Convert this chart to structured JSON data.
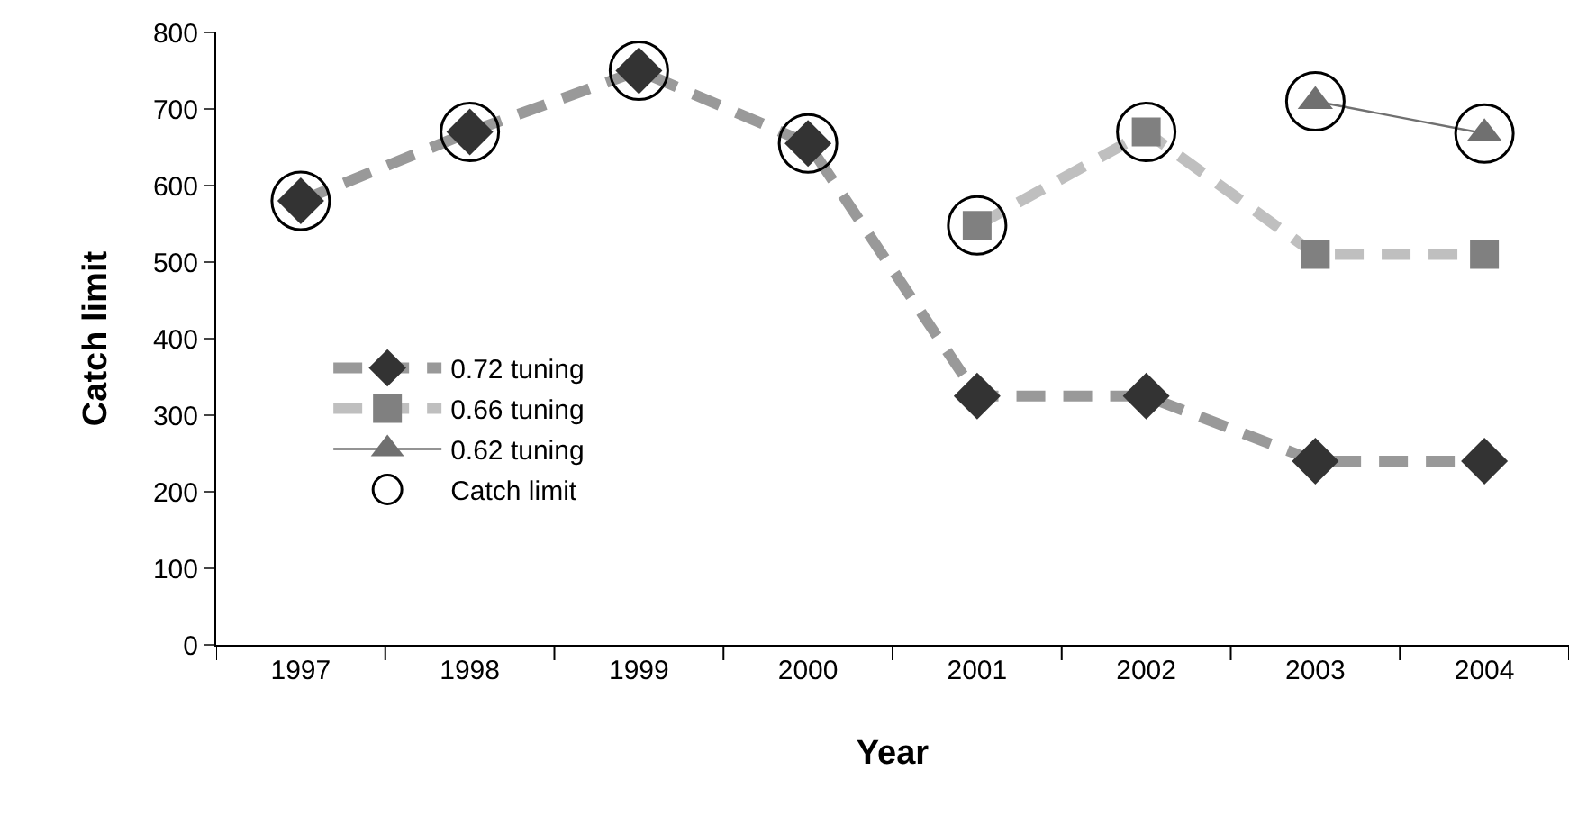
{
  "chart_data": {
    "type": "line",
    "xlabel": "Year",
    "ylabel": "Catch limit",
    "categories": [
      "1997",
      "1998",
      "1999",
      "2000",
      "2001",
      "2002",
      "2003",
      "2004"
    ],
    "ylim": [
      0,
      800
    ],
    "yticks": [
      0,
      100,
      200,
      300,
      400,
      500,
      600,
      700,
      800
    ],
    "legend": "left",
    "series": [
      {
        "name": "0.72 tuning",
        "color": "#333333",
        "marker": "diamond",
        "line_style": "dashed",
        "values": [
          580,
          670,
          750,
          655,
          325,
          325,
          240,
          240
        ]
      },
      {
        "name": "0.66 tuning",
        "color": "#808080",
        "marker": "square",
        "line_style": "dashed",
        "values": [
          null,
          null,
          null,
          null,
          548,
          670,
          510,
          510
        ]
      },
      {
        "name": "0.62 tuning",
        "color": "#707070",
        "marker": "triangle",
        "line_style": "solid",
        "values": [
          null,
          null,
          null,
          null,
          null,
          null,
          710,
          668
        ]
      },
      {
        "name": "Catch limit",
        "type": "scatter",
        "color": "#000000",
        "marker": "circle",
        "values": [
          580,
          670,
          750,
          655,
          548,
          670,
          710,
          668
        ]
      }
    ]
  }
}
